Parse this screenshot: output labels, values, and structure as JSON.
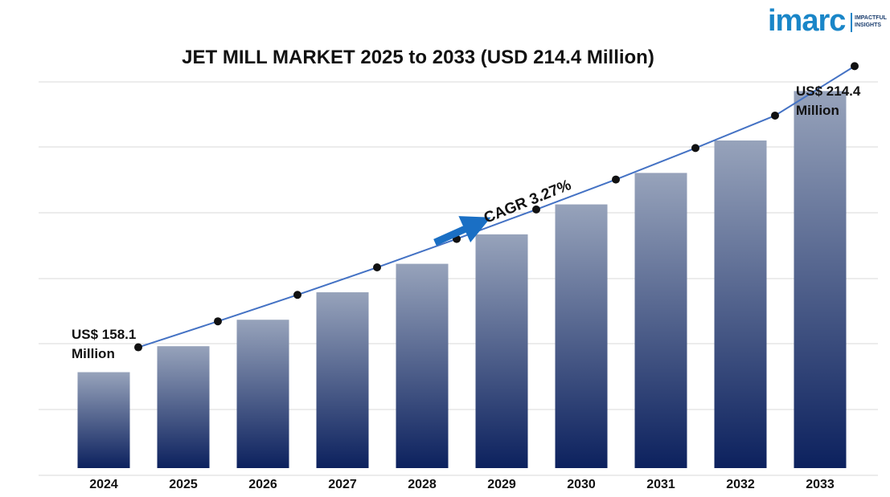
{
  "logo": {
    "word": "imarc",
    "tagline_1": "IMPACTFUL",
    "tagline_2": "INSIGHTS"
  },
  "chart_data": {
    "type": "bar",
    "title": "JET MILL MARKET 2025 to 2033 (USD 214.4 Million)",
    "xlabel": "",
    "ylabel": "",
    "categories": [
      "2024",
      "2025",
      "2026",
      "2027",
      "2028",
      "2029",
      "2030",
      "2031",
      "2032",
      "2033"
    ],
    "series": [
      {
        "values": [
          158.1,
          163.3,
          168.6,
          174.1,
          179.8,
          185.7,
          191.7,
          198.0,
          204.5,
          214.4
        ]
      }
    ],
    "trend_line": true,
    "annotations": {
      "start_label_line1": "US$ 158.1",
      "start_label_line2": "Million",
      "end_label_line1": "US$ 214.4",
      "end_label_line2": "Million",
      "cagr": "CAGR 3.27%"
    },
    "grid": true,
    "legend": "none",
    "colors": {
      "bar_top": "#97a3bb",
      "bar_bottom": "#0c215e",
      "line": "#4472c4",
      "marker": "#111111",
      "arrow": "#1a6fc4",
      "grid": "#d9d9d9"
    }
  }
}
